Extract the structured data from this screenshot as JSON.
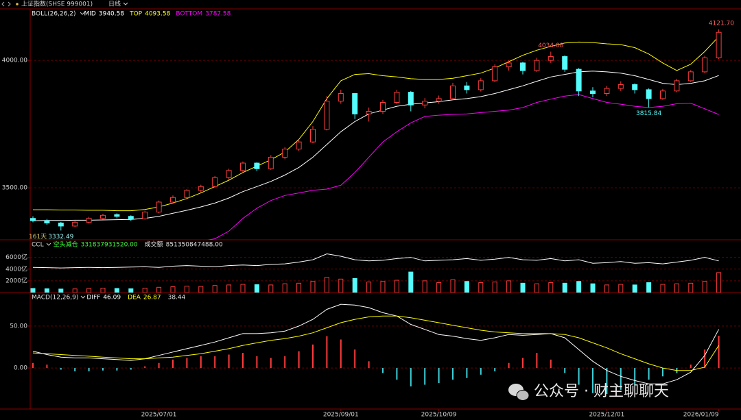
{
  "chart_data": [
    {
      "type": "candlestick",
      "title": "上证指数(SHSE 999001)",
      "period": "日线",
      "indicator": "BOLL(26,26,2)",
      "up_color": "#ff3b3b",
      "down_color": "#54fcfc",
      "ylim": [
        3296,
        4202
      ],
      "yticks": [
        {
          "value": 4000,
          "label": "4000.00"
        },
        {
          "value": 3500,
          "label": "3500.00"
        }
      ],
      "grid": true,
      "categories": [
        null,
        null,
        null,
        null,
        null,
        null,
        null,
        null,
        null,
        "2025/07/01",
        null,
        null,
        null,
        null,
        null,
        null,
        null,
        null,
        null,
        null,
        null,
        null,
        "2025/09/01",
        null,
        null,
        null,
        null,
        null,
        null,
        "2025/10/09",
        null,
        null,
        null,
        null,
        null,
        null,
        null,
        null,
        null,
        null,
        null,
        "2025/12/01",
        null,
        null,
        null,
        null,
        null,
        null,
        null,
        "2026/01/09"
      ],
      "candles": [
        [
          3380,
          3388,
          3365,
          3371
        ],
        [
          3371,
          3378,
          3355,
          3362
        ],
        [
          3362,
          3366,
          3332.49,
          3350
        ],
        [
          3350,
          3370,
          3346,
          3365
        ],
        [
          3365,
          3386,
          3360,
          3380
        ],
        [
          3380,
          3398,
          3375,
          3392
        ],
        [
          3395,
          3400,
          3380,
          3388
        ],
        [
          3388,
          3392,
          3370,
          3378
        ],
        [
          3378,
          3410,
          3375,
          3405
        ],
        [
          3405,
          3450,
          3400,
          3444
        ],
        [
          3444,
          3470,
          3438,
          3462
        ],
        [
          3462,
          3495,
          3455,
          3490
        ],
        [
          3490,
          3512,
          3482,
          3505
        ],
        [
          3505,
          3546,
          3500,
          3540
        ],
        [
          3540,
          3575,
          3532,
          3568
        ],
        [
          3568,
          3603,
          3560,
          3597
        ],
        [
          3597,
          3600,
          3565,
          3575
        ],
        [
          3575,
          3628,
          3570,
          3620
        ],
        [
          3620,
          3660,
          3612,
          3652
        ],
        [
          3652,
          3690,
          3645,
          3680
        ],
        [
          3680,
          3742,
          3675,
          3730
        ],
        [
          3730,
          3860,
          3725,
          3840
        ],
        [
          3840,
          3885,
          3830,
          3870
        ],
        [
          3870,
          3872,
          3770,
          3790
        ],
        [
          3790,
          3815,
          3760,
          3800
        ],
        [
          3800,
          3845,
          3790,
          3835
        ],
        [
          3835,
          3885,
          3828,
          3875
        ],
        [
          3875,
          3880,
          3800,
          3825
        ],
        [
          3825,
          3852,
          3812,
          3840
        ],
        [
          3840,
          3862,
          3830,
          3850
        ],
        [
          3850,
          3912,
          3845,
          3900
        ],
        [
          3900,
          3915,
          3870,
          3885
        ],
        [
          3885,
          3930,
          3878,
          3920
        ],
        [
          3920,
          3985,
          3915,
          3975
        ],
        [
          3975,
          4000,
          3960,
          3990
        ],
        [
          3990,
          3995,
          3945,
          3960
        ],
        [
          3960,
          4010,
          3955,
          4000
        ],
        [
          4000,
          4034.08,
          3990,
          4015
        ],
        [
          4015,
          4020,
          3955,
          3965
        ],
        [
          3965,
          3970,
          3860,
          3880
        ],
        [
          3880,
          3895,
          3855,
          3870
        ],
        [
          3870,
          3900,
          3860,
          3890
        ],
        [
          3890,
          3918,
          3880,
          3905
        ],
        [
          3905,
          3910,
          3870,
          3885
        ],
        [
          3885,
          3890,
          3815.84,
          3850
        ],
        [
          3850,
          3888,
          3845,
          3880
        ],
        [
          3880,
          3928,
          3875,
          3920
        ],
        [
          3920,
          3962,
          3915,
          3955
        ],
        [
          3955,
          4018,
          3950,
          4010
        ],
        [
          4010,
          4121.7,
          4005,
          4110
        ]
      ],
      "series": [
        {
          "name": "MID",
          "color": "#ffffff",
          "values": [
            3371,
            3372,
            3372,
            3373,
            3373,
            3374,
            3375,
            3376,
            3380,
            3388,
            3400,
            3412,
            3425,
            3440,
            3460,
            3485,
            3505,
            3525,
            3550,
            3580,
            3620,
            3670,
            3720,
            3760,
            3790,
            3805,
            3820,
            3828,
            3833,
            3838,
            3845,
            3850,
            3858,
            3870,
            3885,
            3900,
            3918,
            3935,
            3945,
            3955,
            3958,
            3955,
            3950,
            3940,
            3925,
            3910,
            3905,
            3910,
            3920,
            3940.58
          ]
        },
        {
          "name": "TOP",
          "color": "#ffff00",
          "values": [
            3414,
            3414,
            3413,
            3413,
            3412,
            3412,
            3410,
            3410,
            3415,
            3425,
            3440,
            3458,
            3480,
            3505,
            3530,
            3560,
            3585,
            3610,
            3640,
            3690,
            3760,
            3850,
            3920,
            3945,
            3948,
            3940,
            3935,
            3928,
            3925,
            3925,
            3930,
            3940,
            3950,
            3970,
            3995,
            4020,
            4040,
            4055,
            4068,
            4072,
            4070,
            4065,
            4062,
            4050,
            4025,
            3990,
            3960,
            3985,
            4035,
            4093.58
          ]
        },
        {
          "name": "BOTTOM",
          "color": "#ff00ff",
          "values": [
            3280,
            3282,
            3283,
            3285,
            3286,
            3288,
            3290,
            3292,
            3290,
            3285,
            3282,
            3285,
            3290,
            3300,
            3330,
            3380,
            3420,
            3450,
            3470,
            3480,
            3490,
            3495,
            3510,
            3560,
            3620,
            3680,
            3720,
            3755,
            3780,
            3785,
            3788,
            3790,
            3795,
            3800,
            3805,
            3815,
            3835,
            3848,
            3860,
            3866,
            3850,
            3835,
            3828,
            3820,
            3815,
            3820,
            3830,
            3832,
            3810,
            3787.58
          ]
        }
      ],
      "annotations": [
        {
          "value": 4121.7,
          "label": "4121.70",
          "color": "#ff6060"
        },
        {
          "value": 4034.08,
          "label": "4034.08",
          "color": "#ff6060"
        },
        {
          "value": 3815.84,
          "label": "3815.84",
          "color": "#54fcfc"
        },
        {
          "value": 3332.49,
          "label": "3332.49",
          "color": "#9ff5f5",
          "prefix": "161天"
        }
      ]
    },
    {
      "type": "volume",
      "ylim": [
        0,
        9000
      ],
      "grid": true,
      "yticks": [
        {
          "value": 6000,
          "label": "6000亿"
        },
        {
          "value": 4000,
          "label": "4000亿"
        },
        {
          "value": 2000,
          "label": "2000亿"
        }
      ],
      "values": [
        700,
        650,
        600,
        620,
        700,
        750,
        700,
        650,
        750,
        900,
        1000,
        1100,
        1050,
        1200,
        1300,
        1400,
        1350,
        1300,
        1500,
        1600,
        1900,
        2600,
        2300,
        2400,
        1800,
        1900,
        2100,
        3500,
        2000,
        1700,
        2200,
        1900,
        1700,
        1800,
        2000,
        1600,
        1500,
        1700,
        1600,
        1900,
        1500,
        1300,
        1400,
        1300,
        1700,
        1400,
        1500,
        1600,
        1900,
        3400
      ],
      "series": [
        {
          "name": "CCL",
          "color": "#ffffff",
          "values": [
            4300,
            4250,
            4200,
            4250,
            4300,
            4250,
            4300,
            4350,
            4400,
            4300,
            4500,
            4600,
            4500,
            4400,
            4600,
            4700,
            4600,
            4800,
            4900,
            5200,
            5600,
            6600,
            6200,
            5600,
            5400,
            5500,
            5800,
            6000,
            5400,
            5500,
            5600,
            5800,
            5500,
            5700,
            6000,
            5600,
            5500,
            5800,
            5400,
            5600,
            5000,
            5100,
            5300,
            5000,
            5100,
            4900,
            5200,
            5500,
            6000,
            5400
          ]
        }
      ],
      "readouts": [
        {
          "name": "空头减仓",
          "value": 331837931520,
          "label": "331837931520.00",
          "color": "#3cff3c"
        },
        {
          "name": "成交额",
          "value": 851350847488,
          "label": "851350847488.00",
          "color": "#e0e0e0"
        }
      ]
    },
    {
      "type": "macd",
      "indicator": "MACD(12,26,9)",
      "ylim": [
        -49,
        90
      ],
      "grid": true,
      "yticks": [
        {
          "value": 50,
          "label": "50.00"
        },
        {
          "value": 0,
          "label": "0.00"
        }
      ],
      "up_color": "#ff3b3b",
      "down_color": "#3fd0d8",
      "series": [
        {
          "name": "DIFF",
          "color": "#ffffff",
          "values": [
            20,
            16,
            13,
            12,
            12,
            11,
            10,
            9,
            11,
            15,
            19,
            23,
            27,
            31,
            36,
            41,
            41,
            42,
            44,
            50,
            58,
            70,
            76,
            75,
            72,
            66,
            62,
            52,
            46,
            40,
            38,
            35,
            33,
            36,
            40,
            39,
            40,
            41,
            36,
            22,
            8,
            -3,
            -10,
            -15,
            -19,
            -19,
            -14,
            -5,
            15,
            46.09
          ]
        },
        {
          "name": "DEA",
          "color": "#ffff00",
          "values": [
            18,
            17,
            16,
            15,
            14,
            13,
            12,
            11,
            11,
            12,
            13,
            15,
            17,
            20,
            23,
            27,
            30,
            33,
            35,
            38,
            42,
            48,
            54,
            58,
            61,
            62,
            62,
            60,
            57,
            54,
            51,
            48,
            45,
            43,
            42,
            41,
            41,
            41,
            40,
            36,
            30,
            24,
            17,
            11,
            5,
            0,
            -3,
            -3,
            1,
            26.87
          ]
        }
      ],
      "values": [
        6,
        4,
        -2,
        -4,
        -4,
        -3,
        -3,
        -2,
        2,
        6,
        10,
        12,
        14,
        14,
        16,
        18,
        14,
        12,
        14,
        20,
        28,
        38,
        34,
        22,
        8,
        -6,
        -14,
        -22,
        -20,
        -18,
        -14,
        -12,
        -8,
        -4,
        6,
        12,
        18,
        10,
        -6,
        -20,
        -30,
        -31,
        -26,
        -20,
        -14,
        -10,
        -6,
        4,
        22,
        38.44
      ]
    }
  ],
  "watermark": "公众号 · 财主聊聊天"
}
